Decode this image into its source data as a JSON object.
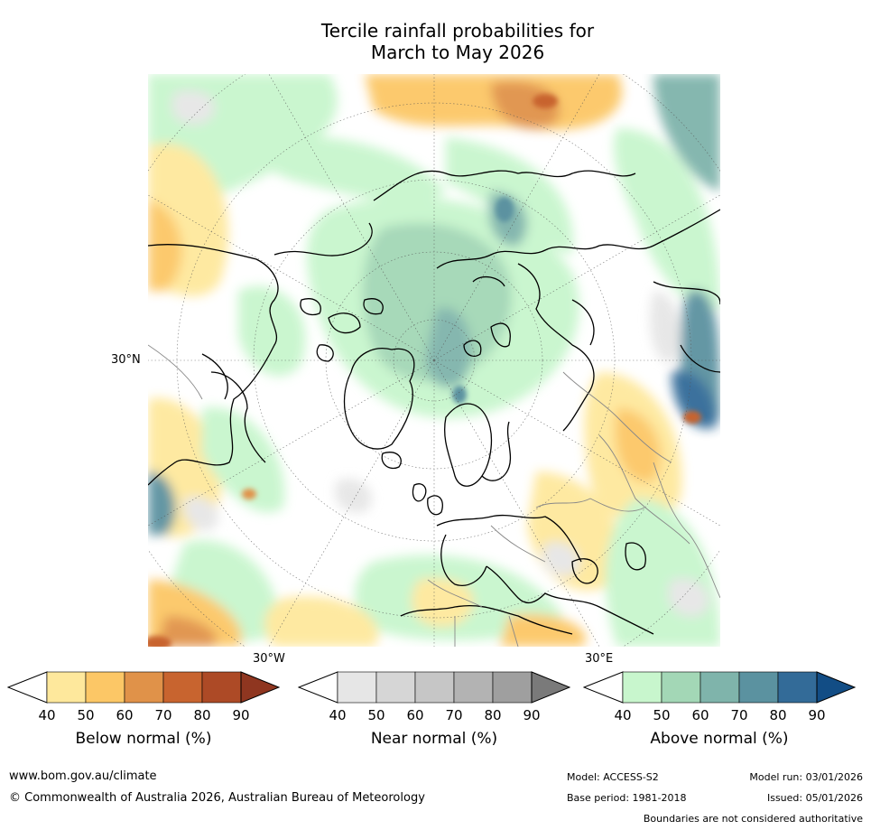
{
  "title_line1": "Tercile rainfall probabilities for",
  "title_line2": "March to May 2026",
  "map": {
    "projection": "north-polar-stereographic",
    "lat_label": "30°N",
    "lon_labels": [
      "30°W",
      "30°E"
    ]
  },
  "colorbars": [
    {
      "title": "Below normal (%)",
      "ticks": [
        "40",
        "50",
        "60",
        "70",
        "80",
        "90"
      ],
      "colors": [
        "#ffffff",
        "#fee89c",
        "#fcc766",
        "#e09249",
        "#c8642f",
        "#ad4a26",
        "#8f3620"
      ]
    },
    {
      "title": "Near normal (%)",
      "ticks": [
        "40",
        "50",
        "60",
        "70",
        "80",
        "90"
      ],
      "colors": [
        "#ffffff",
        "#e6e6e6",
        "#d6d6d6",
        "#c6c6c6",
        "#b3b3b3",
        "#9f9f9f",
        "#7a7a7a"
      ]
    },
    {
      "title": "Above normal (%)",
      "ticks": [
        "40",
        "50",
        "60",
        "70",
        "80",
        "90"
      ],
      "colors": [
        "#ffffff",
        "#c8f6cd",
        "#a3d7b6",
        "#7fb4ab",
        "#5b92a0",
        "#336b98",
        "#124d85"
      ]
    }
  ],
  "footer": {
    "url": "www.bom.gov.au/climate",
    "copyright": "© Commonwealth of Australia 2026, Australian Bureau of Meteorology",
    "model": "Model: ACCESS-S2",
    "base_period": "Base period: 1981-2018",
    "model_run": "Model run: 03/01/2026",
    "issued": "Issued: 05/01/2026",
    "disclaimer": "Boundaries are not considered authoritative"
  }
}
